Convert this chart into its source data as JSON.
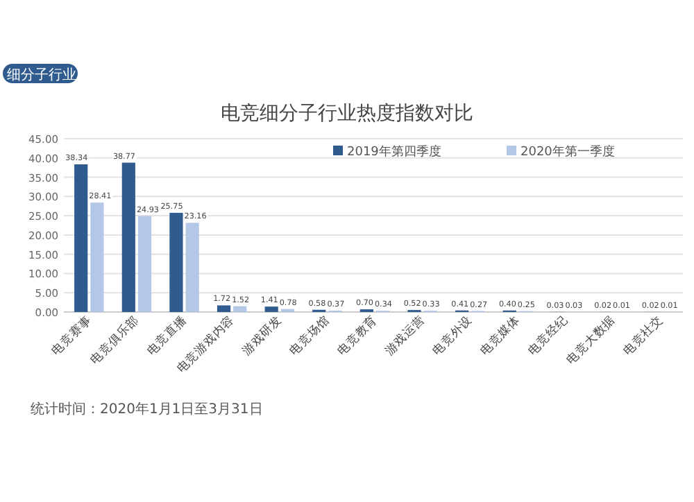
{
  "chart_data": {
    "type": "bar",
    "title": "电竞细分子行业热度指数对比",
    "categories": [
      "电竞赛事",
      "电竞俱乐部",
      "电竞直播",
      "电竞游戏内容",
      "游戏研发",
      "电竞场馆",
      "电竞教育",
      "游戏运营",
      "电竞外设",
      "电竞媒体",
      "电竞经纪",
      "电竞大数据",
      "电竞社交"
    ],
    "series": [
      {
        "name": "2019年第四季度",
        "color": "#2f5b8f",
        "values": [
          38.34,
          38.77,
          25.75,
          1.72,
          1.41,
          0.58,
          0.7,
          0.52,
          0.41,
          0.4,
          0.03,
          0.02,
          0.02
        ],
        "value_labels": [
          "38.34",
          "38.77",
          "25.75",
          "1.72",
          "1.41",
          "0.58",
          "0.70",
          "0.52",
          "0.41",
          "0.40",
          "0.03",
          "0.02",
          "0.02"
        ]
      },
      {
        "name": "2020年第一季度",
        "color": "#b4c7e7",
        "values": [
          28.41,
          24.93,
          23.16,
          1.52,
          0.78,
          0.37,
          0.34,
          0.33,
          0.27,
          0.25,
          0.03,
          0.01,
          0.01
        ],
        "value_labels": [
          "28.41",
          "24.93",
          "23.16",
          "1.52",
          "0.78",
          "0.37",
          "0.34",
          "0.33",
          "0.27",
          "0.25",
          "0.03",
          "0.01",
          "0.01"
        ]
      }
    ],
    "ylim": [
      0,
      45
    ],
    "yticks": [
      {
        "value": 0,
        "label": "0.00"
      },
      {
        "value": 5,
        "label": "5.00"
      },
      {
        "value": 10,
        "label": "10.00"
      },
      {
        "value": 15,
        "label": "15.00"
      },
      {
        "value": 20,
        "label": "20.00"
      },
      {
        "value": 25,
        "label": "25.00"
      },
      {
        "value": 30,
        "label": "30.00"
      },
      {
        "value": 35,
        "label": "35.00"
      },
      {
        "value": 40,
        "label": "40.00"
      },
      {
        "value": 45,
        "label": "45.00"
      }
    ],
    "grid": "y",
    "legend": "top right",
    "annotations": [
      "细分子行业",
      "统计时间：2020年1月1日至3月31日"
    ]
  }
}
